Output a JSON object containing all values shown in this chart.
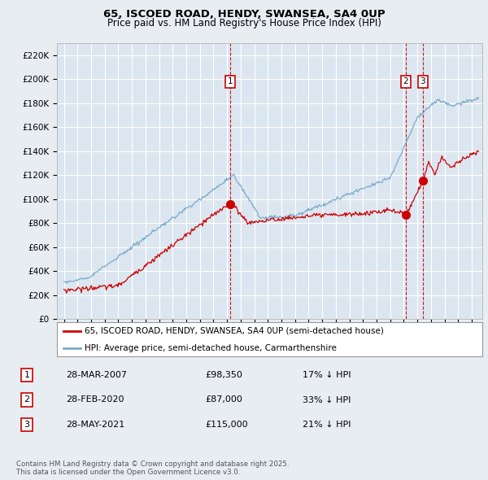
{
  "title": "65, ISCOED ROAD, HENDY, SWANSEA, SA4 0UP",
  "subtitle": "Price paid vs. HM Land Registry's House Price Index (HPI)",
  "ylabel_ticks": [
    "£0",
    "£20K",
    "£40K",
    "£60K",
    "£80K",
    "£100K",
    "£120K",
    "£140K",
    "£160K",
    "£180K",
    "£200K",
    "£220K"
  ],
  "ytick_values": [
    0,
    20000,
    40000,
    60000,
    80000,
    100000,
    120000,
    140000,
    160000,
    180000,
    200000,
    220000
  ],
  "ylim": [
    0,
    230000
  ],
  "background_color": "#e8edf2",
  "plot_bg": "#dce6f0",
  "grid_color": "#ffffff",
  "red_line_color": "#cc0000",
  "blue_line_color": "#7aabcc",
  "marker_color": "#cc0000",
  "vline_color": "#cc0000",
  "label_box_color": "#cc0000",
  "transactions": [
    {
      "date_num": 2007.23,
      "price": 98350,
      "label": "1"
    },
    {
      "date_num": 2020.15,
      "price": 87000,
      "label": "2"
    },
    {
      "date_num": 2021.4,
      "price": 115000,
      "label": "3"
    }
  ],
  "legend_entries": [
    "65, ISCOED ROAD, HENDY, SWANSEA, SA4 0UP (semi-detached house)",
    "HPI: Average price, semi-detached house, Carmarthenshire"
  ],
  "table_rows": [
    {
      "num": "1",
      "date": "28-MAR-2007",
      "price": "£98,350",
      "hpi": "17% ↓ HPI"
    },
    {
      "num": "2",
      "date": "28-FEB-2020",
      "price": "£87,000",
      "hpi": "33% ↓ HPI"
    },
    {
      "num": "3",
      "date": "28-MAY-2021",
      "price": "£115,000",
      "hpi": "21% ↓ HPI"
    }
  ],
  "footer": "Contains HM Land Registry data © Crown copyright and database right 2025.\nThis data is licensed under the Open Government Licence v3.0.",
  "xmin": 1994.5,
  "xmax": 2025.8
}
